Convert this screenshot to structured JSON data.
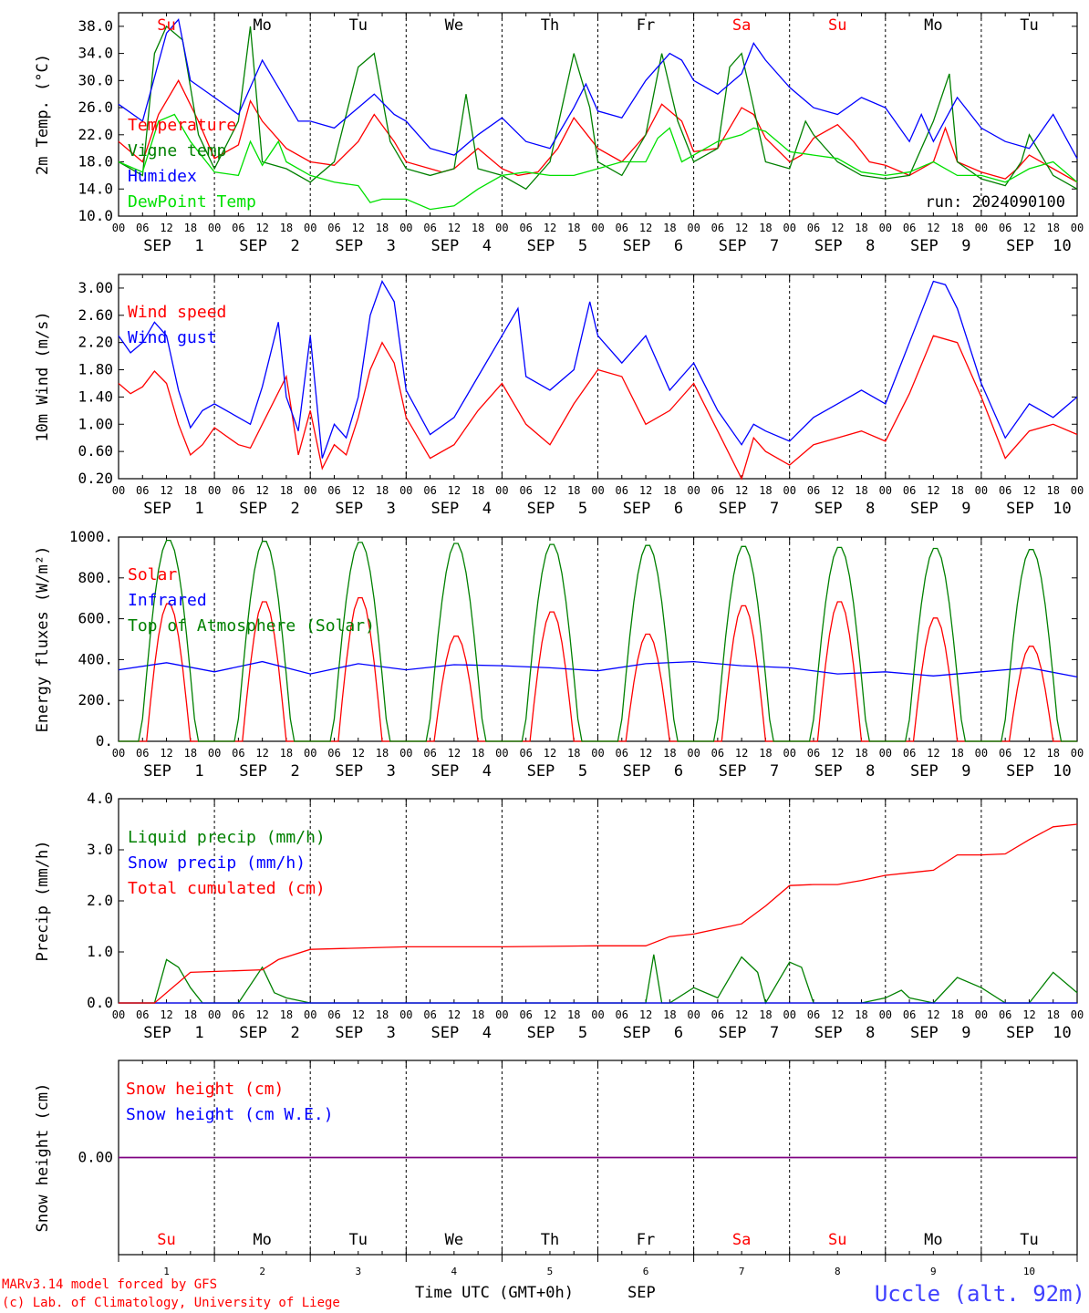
{
  "run_label": "run: 2024090100",
  "footer": {
    "model": "MARv3.14 model forced by GFS",
    "copyright": "(c) Lab. of Climatology, University of Liege",
    "xaxis_title": "Time UTC (GMT+0h)",
    "month": "SEP",
    "station": "Uccle (alt. 92m)"
  },
  "days": [
    "1",
    "2",
    "3",
    "4",
    "5",
    "6",
    "7",
    "8",
    "9",
    "10"
  ],
  "weekdays": [
    {
      "label": "Su",
      "weekend": true
    },
    {
      "label": "Mo",
      "weekend": false
    },
    {
      "label": "Tu",
      "weekend": false
    },
    {
      "label": "We",
      "weekend": false
    },
    {
      "label": "Th",
      "weekend": false
    },
    {
      "label": "Fr",
      "weekend": false
    },
    {
      "label": "Sa",
      "weekend": true
    },
    {
      "label": "Su",
      "weekend": true
    },
    {
      "label": "Mo",
      "weekend": false
    },
    {
      "label": "Tu",
      "weekend": false
    }
  ],
  "hour_ticks": [
    "00",
    "06",
    "12",
    "18"
  ],
  "colors": {
    "red": "#ff0000",
    "green": "#008000",
    "blue": "#0000ff",
    "lightgreen": "#00e000",
    "purple": "#800080"
  },
  "chart_data": [
    {
      "type": "line",
      "ylabel": "2m Temp. (°C)",
      "ylim": [
        10,
        40
      ],
      "yticks": [
        "10.0",
        "14.0",
        "18.0",
        "22.0",
        "26.0",
        "30.0",
        "34.0",
        "38.0"
      ],
      "xlim_hours": [
        0,
        240
      ],
      "series": [
        {
          "name": "Temperature",
          "color": "red",
          "x": [
            0,
            6,
            10,
            15,
            20,
            24,
            30,
            33,
            36,
            42,
            48,
            54,
            60,
            64,
            69,
            72,
            78,
            81,
            84,
            90,
            96,
            100,
            102,
            105,
            110,
            114,
            120,
            126,
            132,
            136,
            141,
            144,
            150,
            156,
            159,
            162,
            168,
            171,
            174,
            180,
            184,
            188,
            192,
            198,
            204,
            207,
            210,
            216,
            222,
            225,
            228,
            234,
            240
          ],
          "y": [
            21,
            18,
            25,
            30,
            24,
            18.5,
            20.5,
            27,
            24,
            20,
            18,
            17.5,
            21,
            25,
            21,
            18,
            17,
            16.5,
            17,
            20,
            17,
            16,
            16.2,
            16.5,
            20,
            24.5,
            20,
            18,
            22,
            26.5,
            24,
            19.5,
            20,
            26,
            25,
            21.5,
            18,
            19,
            21.5,
            23.5,
            21,
            18,
            17.5,
            16,
            18,
            23,
            18,
            16.5,
            15.5,
            17,
            19,
            17,
            15
          ]
        },
        {
          "name": "Vigne temp",
          "color": "green",
          "x": [
            0,
            6,
            9,
            12,
            16,
            20,
            24,
            30,
            33,
            36,
            42,
            48,
            54,
            60,
            64,
            68,
            72,
            78,
            84,
            87,
            90,
            96,
            102,
            108,
            114,
            118,
            120,
            126,
            132,
            136,
            140,
            144,
            150,
            153,
            156,
            159,
            162,
            168,
            172,
            174,
            180,
            186,
            192,
            198,
            204,
            208,
            210,
            216,
            222,
            226,
            228,
            234,
            240
          ],
          "y": [
            18,
            16,
            34,
            38,
            36,
            22,
            17,
            24,
            38,
            18,
            17,
            15,
            18,
            32,
            34,
            21,
            17,
            16,
            17,
            28,
            17,
            16,
            14,
            18,
            34,
            26,
            18,
            16,
            22,
            34,
            24,
            18,
            20,
            32,
            34,
            26,
            18,
            17,
            24,
            22,
            18,
            16,
            15.5,
            16,
            24,
            31,
            18,
            15.5,
            14.5,
            18,
            22,
            16,
            14
          ]
        },
        {
          "name": "Humidex",
          "color": "blue",
          "x": [
            0,
            6,
            12,
            15,
            18,
            24,
            30,
            36,
            40,
            45,
            48,
            54,
            60,
            64,
            69,
            72,
            78,
            84,
            90,
            96,
            102,
            108,
            114,
            117,
            120,
            126,
            132,
            138,
            141,
            144,
            150,
            156,
            159,
            162,
            168,
            174,
            180,
            186,
            192,
            198,
            201,
            204,
            210,
            216,
            222,
            228,
            234,
            240
          ],
          "y": [
            26.5,
            24,
            37,
            39,
            30,
            27.5,
            25,
            33,
            29,
            24,
            24,
            23,
            26,
            28,
            25,
            24,
            20,
            19,
            22,
            24.5,
            21,
            20,
            26,
            29.5,
            25.5,
            24.5,
            30,
            34,
            33,
            30,
            28,
            31,
            35.5,
            33,
            29,
            26,
            25,
            27.5,
            26,
            21,
            25,
            21,
            27.5,
            23,
            21,
            20,
            25,
            18.5
          ]
        },
        {
          "name": "DewPoint Temp",
          "color": "lightgreen",
          "x": [
            0,
            6,
            10,
            14,
            18,
            24,
            30,
            33,
            36,
            40,
            42,
            48,
            54,
            60,
            63,
            66,
            72,
            78,
            84,
            90,
            96,
            102,
            108,
            114,
            120,
            126,
            132,
            135,
            138,
            141,
            144,
            150,
            156,
            159,
            162,
            168,
            174,
            180,
            186,
            192,
            198,
            204,
            210,
            216,
            222,
            228,
            234,
            240
          ],
          "y": [
            18,
            16.5,
            24,
            25,
            21,
            16.5,
            16,
            21,
            17.5,
            21,
            18,
            16,
            15,
            14.5,
            12,
            12.5,
            12.5,
            11,
            11.5,
            14,
            16,
            16.5,
            16,
            16,
            17,
            18,
            18,
            21.5,
            23,
            18,
            19,
            21,
            22,
            23,
            22.5,
            19.5,
            19,
            18.5,
            16.5,
            16,
            16.5,
            18,
            16,
            16,
            15,
            17,
            18,
            15
          ]
        }
      ],
      "legend": [
        "Temperature",
        "Vigne temp",
        "Humidex",
        "DewPoint Temp"
      ]
    },
    {
      "type": "line",
      "ylabel": "10m Wind (m/s)",
      "ylim": [
        0.2,
        3.2
      ],
      "yticks": [
        "0.20",
        "0.60",
        "1.00",
        "1.40",
        "1.80",
        "2.20",
        "2.60",
        "3.00"
      ],
      "xlim_hours": [
        0,
        240
      ],
      "series": [
        {
          "name": "Wind speed",
          "color": "red",
          "x": [
            0,
            3,
            6,
            9,
            12,
            15,
            18,
            21,
            24,
            30,
            33,
            36,
            42,
            45,
            48,
            51,
            54,
            57,
            60,
            63,
            66,
            69,
            72,
            78,
            84,
            90,
            96,
            102,
            108,
            114,
            120,
            126,
            132,
            138,
            144,
            150,
            156,
            159,
            162,
            168,
            174,
            180,
            186,
            192,
            198,
            204,
            210,
            216,
            222,
            228,
            234,
            240
          ],
          "y": [
            1.6,
            1.45,
            1.55,
            1.78,
            1.6,
            1.0,
            0.55,
            0.7,
            0.95,
            0.7,
            0.65,
            1.0,
            1.7,
            0.55,
            1.2,
            0.35,
            0.7,
            0.55,
            1.1,
            1.8,
            2.2,
            1.9,
            1.1,
            0.5,
            0.7,
            1.2,
            1.6,
            1.0,
            0.7,
            1.3,
            1.8,
            1.7,
            1.0,
            1.2,
            1.6,
            0.9,
            0.2,
            0.8,
            0.6,
            0.4,
            0.7,
            0.8,
            0.9,
            0.75,
            1.45,
            2.3,
            2.2,
            1.4,
            0.5,
            0.9,
            1.0,
            0.85
          ]
        },
        {
          "name": "Wind gust",
          "color": "blue",
          "x": [
            0,
            3,
            6,
            9,
            12,
            15,
            18,
            21,
            24,
            30,
            33,
            36,
            40,
            42,
            45,
            48,
            51,
            54,
            57,
            60,
            63,
            66,
            69,
            72,
            78,
            84,
            90,
            96,
            100,
            102,
            108,
            114,
            118,
            120,
            126,
            132,
            138,
            144,
            150,
            156,
            159,
            162,
            168,
            174,
            180,
            186,
            192,
            198,
            204,
            207,
            210,
            216,
            222,
            228,
            234,
            240
          ],
          "y": [
            2.3,
            2.05,
            2.2,
            2.5,
            2.3,
            1.5,
            0.95,
            1.2,
            1.3,
            1.1,
            1.0,
            1.55,
            2.5,
            1.4,
            0.9,
            2.3,
            0.5,
            1.0,
            0.8,
            1.4,
            2.6,
            3.1,
            2.8,
            1.5,
            0.85,
            1.1,
            1.7,
            2.3,
            2.7,
            1.7,
            1.5,
            1.8,
            2.8,
            2.3,
            1.9,
            2.3,
            1.5,
            1.9,
            1.2,
            0.7,
            1.0,
            0.9,
            0.75,
            1.1,
            1.3,
            1.5,
            1.3,
            2.2,
            3.1,
            3.05,
            2.7,
            1.6,
            0.8,
            1.3,
            1.1,
            1.4
          ]
        }
      ],
      "legend": [
        "Wind speed",
        "Wind gust"
      ]
    },
    {
      "type": "line",
      "ylabel": "Energy fluxes (W/m²)",
      "ylim": [
        0,
        1000
      ],
      "yticks": [
        "0.",
        "200.",
        "400.",
        "600.",
        "800.",
        "1000."
      ],
      "xlim_hours": [
        0,
        240
      ],
      "series": [
        {
          "name": "Solar",
          "color": "red",
          "peak_hour": 12.5,
          "daily_peaks": [
            680,
            690,
            710,
            520,
            640,
            530,
            670,
            690,
            610,
            470
          ]
        },
        {
          "name": "Infrared",
          "color": "blue",
          "x": [
            0,
            12,
            24,
            36,
            48,
            60,
            72,
            84,
            96,
            108,
            120,
            132,
            144,
            156,
            168,
            180,
            192,
            204,
            216,
            228,
            240
          ],
          "y": [
            350,
            385,
            340,
            390,
            330,
            380,
            350,
            375,
            370,
            360,
            345,
            380,
            390,
            370,
            360,
            330,
            340,
            320,
            340,
            360,
            315
          ]
        },
        {
          "name": "Top of Atmosphere (Solar)",
          "color": "green",
          "peak_hour": 12.5,
          "daily_peaks": [
            990,
            985,
            980,
            975,
            970,
            965,
            960,
            955,
            950,
            945
          ]
        }
      ],
      "legend": [
        "Solar",
        "Infrared",
        "Top of Atmosphere (Solar)"
      ]
    },
    {
      "type": "line",
      "ylabel": "Precip (mm/h)",
      "ylim": [
        0,
        4.0
      ],
      "yticks": [
        "0.0",
        "1.0",
        "2.0",
        "3.0",
        "4.0"
      ],
      "xlim_hours": [
        0,
        240
      ],
      "series": [
        {
          "name": "Liquid precip (mm/h)",
          "color": "green",
          "x": [
            0,
            9,
            12,
            15,
            18,
            21,
            24,
            30,
            36,
            39,
            42,
            48,
            54,
            60,
            72,
            96,
            132,
            134,
            136,
            138,
            144,
            150,
            156,
            160,
            162,
            168,
            171,
            174,
            180,
            186,
            192,
            196,
            198,
            204,
            210,
            216,
            222,
            228,
            234,
            240
          ],
          "y": [
            0,
            0,
            0.85,
            0.7,
            0.3,
            0,
            0,
            0,
            0.7,
            0.2,
            0.1,
            0,
            0,
            0,
            0,
            0,
            0,
            0.95,
            0,
            0,
            0.3,
            0.1,
            0.9,
            0.6,
            0,
            0.8,
            0.7,
            0,
            0,
            0,
            0.1,
            0.25,
            0.1,
            0,
            0.5,
            0.3,
            0,
            0,
            0.6,
            0.2
          ]
        },
        {
          "name": "Snow precip (mm/h)",
          "color": "blue",
          "x": [
            0,
            240
          ],
          "y": [
            0,
            0
          ]
        },
        {
          "name": "Total cumulated (cm)",
          "color": "red",
          "x": [
            0,
            9,
            18,
            36,
            40,
            48,
            72,
            96,
            120,
            132,
            138,
            144,
            150,
            156,
            162,
            168,
            174,
            180,
            186,
            192,
            198,
            204,
            210,
            216,
            222,
            228,
            234,
            240
          ],
          "y": [
            0,
            0,
            0.6,
            0.65,
            0.85,
            1.05,
            1.1,
            1.1,
            1.12,
            1.12,
            1.3,
            1.35,
            1.45,
            1.55,
            1.9,
            2.3,
            2.32,
            2.32,
            2.4,
            2.5,
            2.55,
            2.6,
            2.9,
            2.9,
            2.92,
            3.2,
            3.45,
            3.5
          ]
        }
      ],
      "legend": [
        "Liquid precip (mm/h)",
        "Snow precip (mm/h)",
        "Total cumulated (cm)"
      ]
    },
    {
      "type": "line",
      "ylabel": "Snow height (cm)",
      "ylim": [
        -1,
        1
      ],
      "yticks": [
        "0.00"
      ],
      "xlim_hours": [
        0,
        240
      ],
      "series": [
        {
          "name": "Snow height (cm)",
          "color": "red",
          "x": [
            0,
            240
          ],
          "y": [
            0,
            0
          ]
        },
        {
          "name": "Snow height (cm W.E.)",
          "color": "blue",
          "x": [
            0,
            240
          ],
          "y": [
            0,
            0
          ]
        }
      ],
      "legend": [
        "Snow height (cm)",
        "Snow height (cm W.E.)"
      ]
    }
  ]
}
